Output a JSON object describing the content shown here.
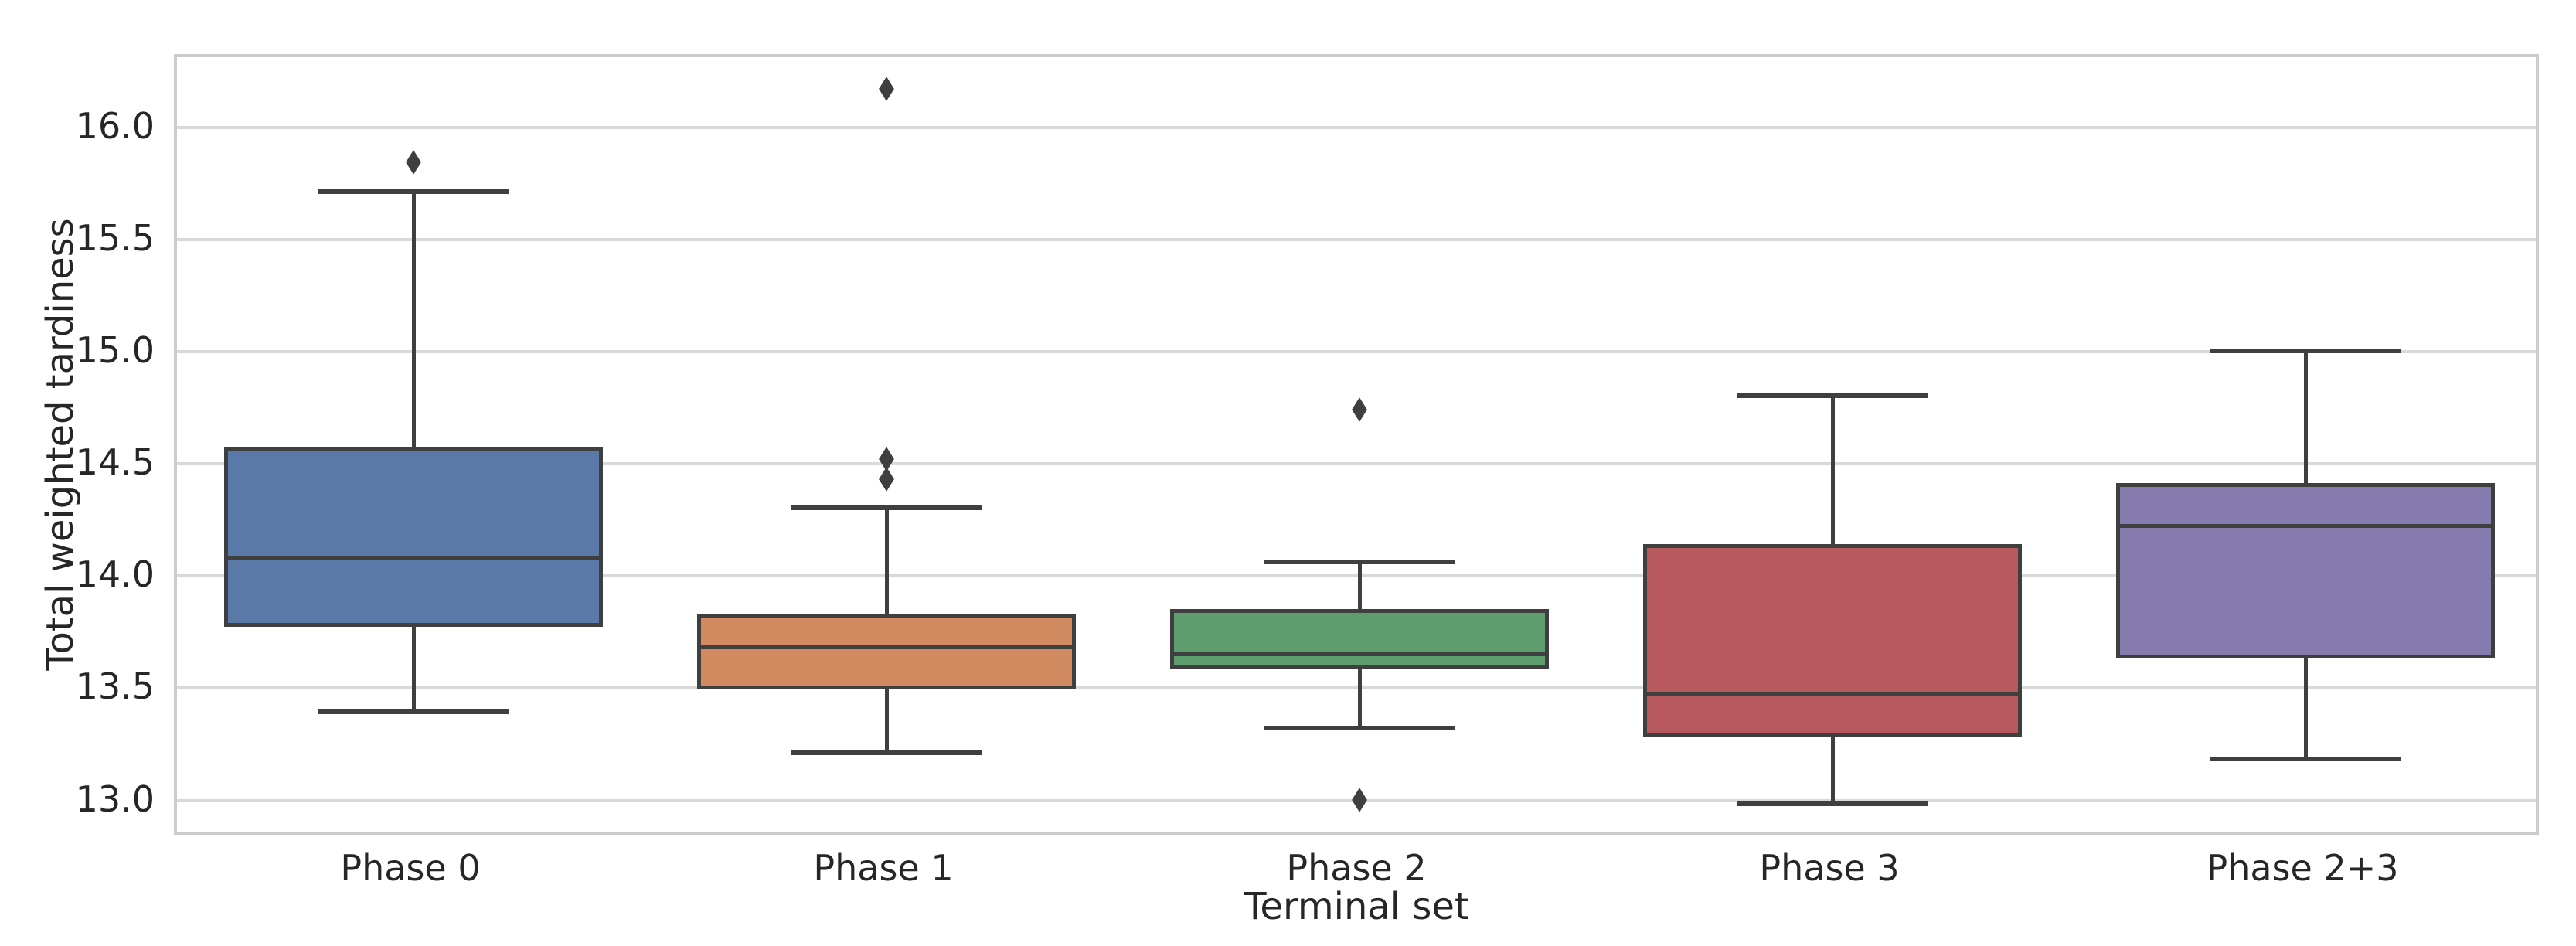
{
  "figure": {
    "background": "#ffffff",
    "text_color": "#262626",
    "grid_color": "#d9d9d9",
    "spine_color": "#cccccc",
    "line_color": "#3f3f3f"
  },
  "chart_data": {
    "type": "boxplot",
    "title": "",
    "xlabel": "Terminal set",
    "ylabel": "Total weighted tardiness",
    "categories": [
      "Phase 0",
      "Phase 1",
      "Phase 2",
      "Phase 3",
      "Phase 2+3"
    ],
    "ylim": [
      12.84,
      16.32
    ],
    "yticks": [
      13.0,
      13.5,
      14.0,
      14.5,
      15.0,
      15.5,
      16.0
    ],
    "grid": "horizontal",
    "legend": "none",
    "outlier_marker": "thin-diamond",
    "series": [
      {
        "label": "Phase 0",
        "color": "#5b79a8",
        "whisker_low": 13.4,
        "q1": 13.78,
        "median": 14.09,
        "q3": 14.58,
        "whisker_high": 15.72,
        "outliers": [
          15.85
        ]
      },
      {
        "label": "Phase 1",
        "color": "#d28b61",
        "whisker_low": 13.22,
        "q1": 13.5,
        "median": 13.69,
        "q3": 13.84,
        "whisker_high": 14.31,
        "outliers": [
          14.44,
          14.53,
          16.18
        ]
      },
      {
        "label": "Phase 2",
        "color": "#5f9e6f",
        "whisker_low": 13.33,
        "q1": 13.59,
        "median": 13.66,
        "q3": 13.86,
        "whisker_high": 14.07,
        "outliers": [
          13.01,
          14.75
        ]
      },
      {
        "label": "Phase 3",
        "color": "#b85a5d",
        "whisker_low": 12.99,
        "q1": 13.29,
        "median": 13.48,
        "q3": 14.15,
        "whisker_high": 14.81,
        "outliers": []
      },
      {
        "label": "Phase 2+3",
        "color": "#867bae",
        "whisker_low": 13.19,
        "q1": 13.64,
        "median": 14.23,
        "q3": 14.42,
        "whisker_high": 15.01,
        "outliers": []
      }
    ]
  }
}
